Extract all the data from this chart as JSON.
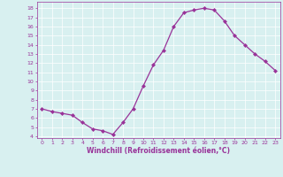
{
  "x": [
    0,
    1,
    2,
    3,
    4,
    5,
    6,
    7,
    8,
    9,
    10,
    11,
    12,
    13,
    14,
    15,
    16,
    17,
    18,
    19,
    20,
    21,
    22,
    23
  ],
  "y": [
    7.0,
    6.7,
    6.5,
    6.3,
    5.5,
    4.8,
    4.6,
    4.2,
    5.5,
    7.0,
    9.5,
    11.8,
    13.4,
    16.0,
    17.5,
    17.8,
    18.0,
    17.8,
    16.6,
    15.0,
    14.0,
    13.0,
    12.2,
    11.2
  ],
  "line_color": "#993399",
  "marker": "D",
  "marker_size": 2.0,
  "linewidth": 0.9,
  "xlabel": "Windchill (Refroidissement éolien,°C)",
  "xlabel_fontsize": 5.5,
  "bg_color": "#d8f0f0",
  "grid_color": "#ffffff",
  "tick_color": "#993399",
  "label_color": "#993399",
  "xlim": [
    -0.5,
    23.5
  ],
  "ylim": [
    3.8,
    18.7
  ],
  "yticks": [
    4,
    5,
    6,
    7,
    8,
    9,
    10,
    11,
    12,
    13,
    14,
    15,
    16,
    17,
    18
  ],
  "xticks": [
    0,
    1,
    2,
    3,
    4,
    5,
    6,
    7,
    8,
    9,
    10,
    11,
    12,
    13,
    14,
    15,
    16,
    17,
    18,
    19,
    20,
    21,
    22,
    23
  ]
}
